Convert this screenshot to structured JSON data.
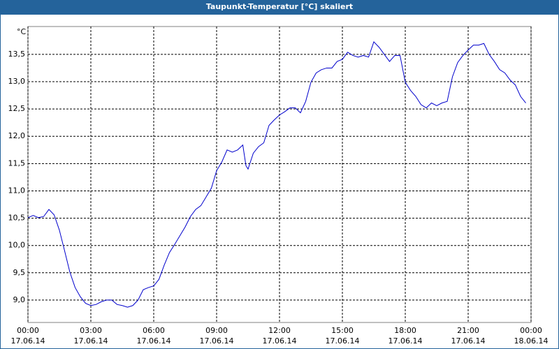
{
  "chart_data": {
    "type": "line",
    "title": "Taupunkt-Temperatur [°C] skaliert",
    "y_label": "°C",
    "x": [
      0,
      0.25,
      0.5,
      0.75,
      1,
      1.25,
      1.5,
      1.75,
      2,
      2.25,
      2.5,
      2.75,
      3,
      3.25,
      3.5,
      3.75,
      4,
      4.25,
      4.5,
      4.75,
      5,
      5.25,
      5.5,
      5.75,
      6,
      6.25,
      6.5,
      6.75,
      7,
      7.25,
      7.5,
      7.75,
      8,
      8.25,
      8.5,
      8.75,
      9,
      9.25,
      9.5,
      9.75,
      10,
      10.25,
      10.4,
      10.5,
      10.75,
      11,
      11.25,
      11.5,
      11.75,
      12,
      12.25,
      12.5,
      12.75,
      13,
      13.25,
      13.5,
      13.75,
      14,
      14.25,
      14.5,
      14.75,
      15,
      15.25,
      15.5,
      15.75,
      16,
      16.25,
      16.5,
      16.75,
      17,
      17.25,
      17.5,
      17.75,
      18,
      18.25,
      18.5,
      18.75,
      19,
      19.25,
      19.5,
      19.75,
      20,
      20.25,
      20.5,
      20.75,
      21,
      21.25,
      21.5,
      21.75,
      22,
      22.25,
      22.5,
      22.75,
      23,
      23.25,
      23.5,
      23.75
    ],
    "series": [
      {
        "name": "Taupunkt",
        "color": "#0000cc",
        "values": [
          10.51,
          10.55,
          10.51,
          10.53,
          10.66,
          10.56,
          10.28,
          9.9,
          9.51,
          9.23,
          9.06,
          8.94,
          8.9,
          8.92,
          8.97,
          9.0,
          9.0,
          8.92,
          8.9,
          8.87,
          8.9,
          9.0,
          9.19,
          9.23,
          9.26,
          9.38,
          9.64,
          9.87,
          10.02,
          10.18,
          10.34,
          10.53,
          10.66,
          10.73,
          10.89,
          11.05,
          11.37,
          11.53,
          11.75,
          11.71,
          11.75,
          11.84,
          11.46,
          11.4,
          11.69,
          11.81,
          11.88,
          12.2,
          12.3,
          12.39,
          12.45,
          12.52,
          12.52,
          12.43,
          12.64,
          12.99,
          13.16,
          13.22,
          13.25,
          13.25,
          13.37,
          13.41,
          13.54,
          13.48,
          13.45,
          13.48,
          13.45,
          13.73,
          13.63,
          13.5,
          13.37,
          13.48,
          13.48,
          12.99,
          12.84,
          12.73,
          12.58,
          12.52,
          12.61,
          12.56,
          12.61,
          12.64,
          13.09,
          13.35,
          13.48,
          13.58,
          13.67,
          13.67,
          13.7,
          13.5,
          13.37,
          13.22,
          13.16,
          13.03,
          12.94,
          12.73,
          12.61
        ]
      }
    ],
    "xlim": [
      0,
      24
    ],
    "ylim": [
      8.59,
      14.01
    ],
    "xticks": [
      {
        "value": 0,
        "label": "00:00\n17.06.14"
      },
      {
        "value": 3,
        "label": "03:00\n17.06.14"
      },
      {
        "value": 6,
        "label": "06:00\n17.06.14"
      },
      {
        "value": 9,
        "label": "09:00\n17.06.14"
      },
      {
        "value": 12,
        "label": "12:00\n17.06.14"
      },
      {
        "value": 15,
        "label": "15:00\n17.06.14"
      },
      {
        "value": 18,
        "label": "18:00\n17.06.14"
      },
      {
        "value": 21,
        "label": "21:00\n17.06.14"
      },
      {
        "value": 24,
        "label": "00:00\n18.06.14"
      }
    ],
    "yticks": [
      {
        "value": 9,
        "label": "9,0"
      },
      {
        "value": 9.5,
        "label": "9,5"
      },
      {
        "value": 10,
        "label": "10,0"
      },
      {
        "value": 10.5,
        "label": "10,5"
      },
      {
        "value": 11,
        "label": "11,0"
      },
      {
        "value": 11.5,
        "label": "11,5"
      },
      {
        "value": 12,
        "label": "12,0"
      },
      {
        "value": 12.5,
        "label": "12,5"
      },
      {
        "value": 13,
        "label": "13,0"
      },
      {
        "value": 13.5,
        "label": "13,5"
      }
    ],
    "grid": true
  }
}
